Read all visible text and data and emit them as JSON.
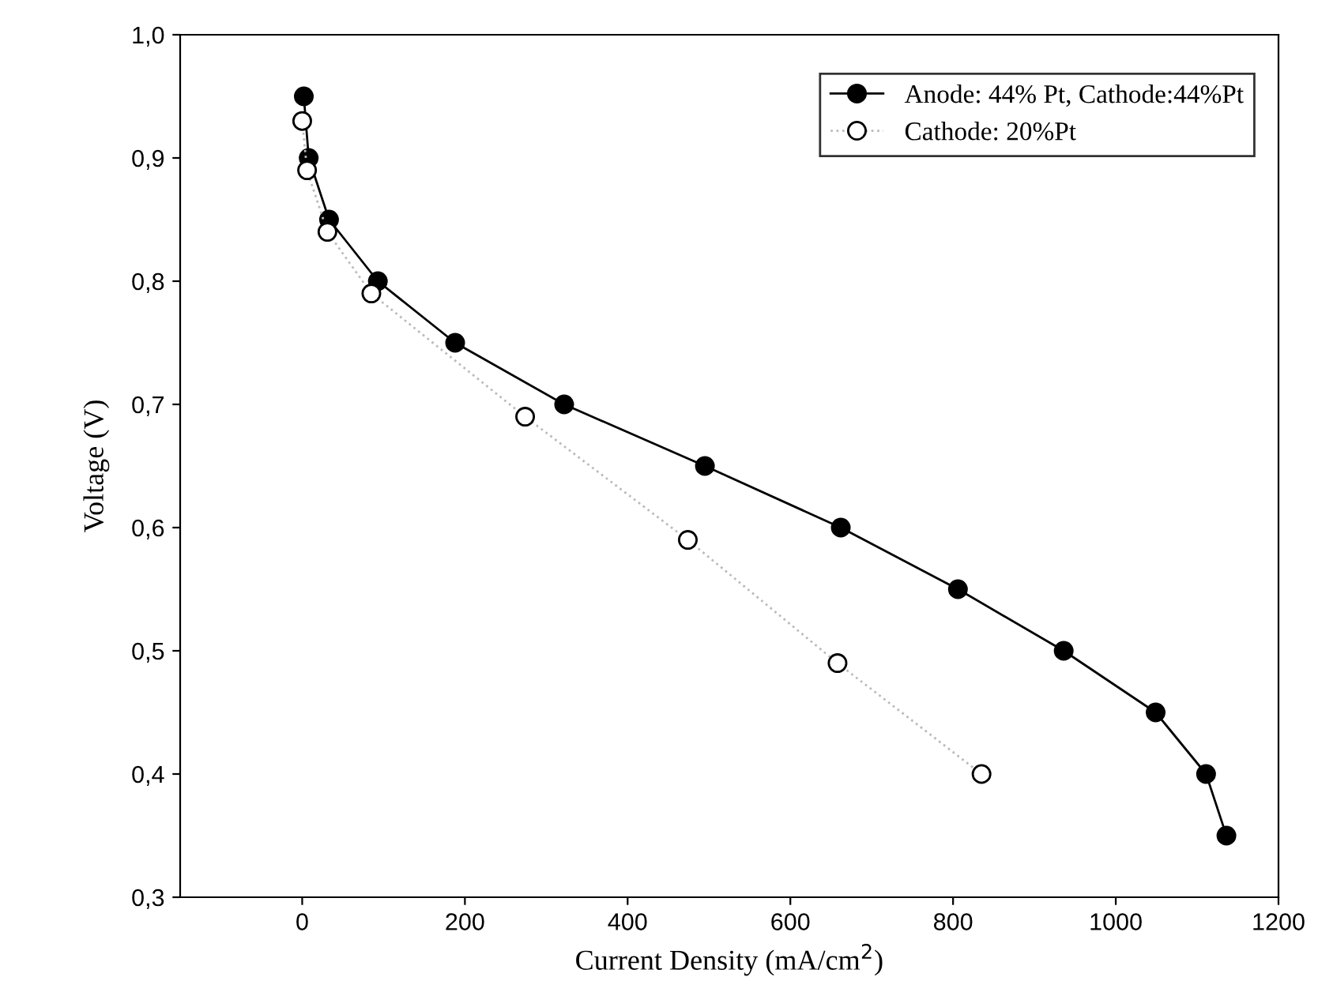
{
  "chart_data": {
    "type": "line",
    "xlabel": "Current Density (mA/cm$^{2}$)",
    "ylabel": "Voltage (V)",
    "xlim": [
      -150,
      1200
    ],
    "xticks": [
      0,
      200,
      400,
      600,
      800,
      1000,
      1200
    ],
    "ylim": [
      0.3,
      1.0
    ],
    "yticks": [
      {
        "value": 0.3,
        "label": "0,3"
      },
      {
        "value": 0.4,
        "label": "0,4"
      },
      {
        "value": 0.5,
        "label": "0,5"
      },
      {
        "value": 0.6,
        "label": "0,6"
      },
      {
        "value": 0.7,
        "label": "0,7"
      },
      {
        "value": 0.8,
        "label": "0,8"
      },
      {
        "value": 0.9,
        "label": "0,9"
      },
      {
        "value": 1.0,
        "label": "1,0"
      }
    ],
    "grid": false,
    "legend": "top right",
    "series": [
      {
        "name": "Anode: 44% Pt, Cathode:44%Pt",
        "color": "#000000",
        "marker": "circle",
        "line_style": "solid",
        "x": [
          2,
          8,
          33,
          93,
          188,
          322,
          495,
          662,
          806,
          936,
          1049,
          1111,
          1136
        ],
        "values": [
          0.95,
          0.9,
          0.85,
          0.8,
          0.75,
          0.7,
          0.65,
          0.6,
          0.55,
          0.5,
          0.45,
          0.4,
          0.35
        ]
      },
      {
        "name": "Cathode: 20%Pt",
        "color": "#000000",
        "marker": "circle",
        "line_style": "dotted",
        "x": [
          0,
          6,
          31,
          85,
          274,
          474,
          658,
          835
        ],
        "values": [
          0.93,
          0.89,
          0.84,
          0.79,
          0.69,
          0.59,
          0.49,
          0.4
        ]
      }
    ]
  }
}
